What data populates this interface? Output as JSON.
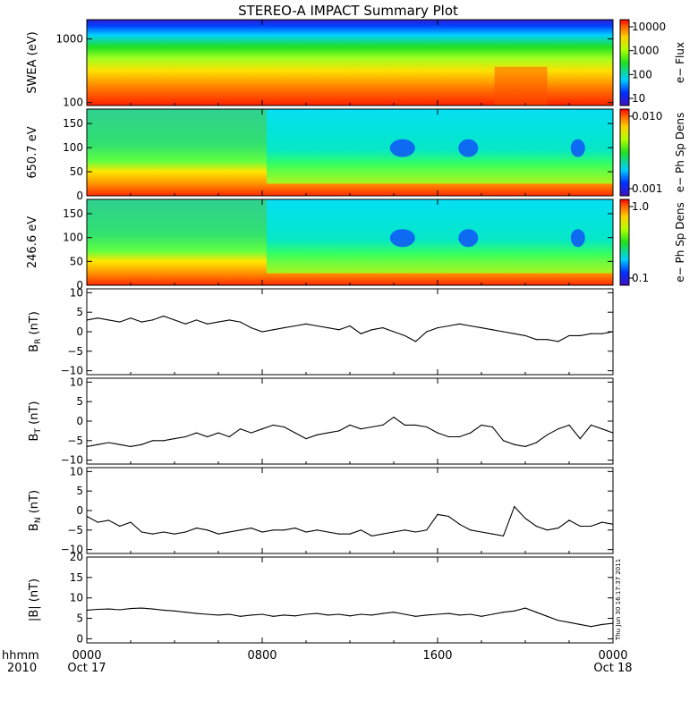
{
  "title": "STEREO-A IMPACT Summary Plot",
  "timestamp": "Thu Jun 30 16:17:37 2011",
  "x_axis": {
    "row1_label": "hhmm",
    "row2_label": "2010",
    "ticks": [
      "0000",
      "0800",
      "1600",
      "0000"
    ],
    "dates": [
      "Oct 17",
      "",
      "",
      "Oct 18"
    ],
    "range_hours": [
      0,
      24
    ]
  },
  "colors": {
    "trace": "#000000",
    "frame": "#000000",
    "background": "#ffffff"
  },
  "chart_data": [
    {
      "type": "heatmap",
      "id": "swea",
      "ylabel": "SWEA (eV)",
      "y_scale": "log",
      "ylim": [
        90,
        2000
      ],
      "yticks": [
        "1000",
        "100"
      ],
      "colorbar": {
        "label": "e− Flux",
        "scale": "log",
        "ticks": [
          "10000",
          "1000",
          "100",
          "10"
        ]
      },
      "description": "Electron flux: high (red) below ~150 eV across the day, decreasing to blue above ~1500 eV"
    },
    {
      "type": "heatmap",
      "id": "pad650",
      "ylabel": "650.7 eV",
      "ylim": [
        0,
        180
      ],
      "yticks": [
        "150",
        "100",
        "50",
        "0"
      ],
      "colorbar": {
        "label": "e− Ph Sp Dens",
        "scale": "log",
        "ticks": [
          "0.010",
          "0.001"
        ]
      },
      "blobs_hours": [
        14.4,
        17.4,
        22.4
      ]
    },
    {
      "type": "heatmap",
      "id": "pad246",
      "ylabel": "246.6 eV",
      "ylim": [
        0,
        180
      ],
      "yticks": [
        "150",
        "100",
        "50",
        "0"
      ],
      "colorbar": {
        "label": "e− Ph Sp Dens",
        "scale": "log",
        "ticks": [
          "1.0",
          "0.1"
        ]
      },
      "blobs_hours": [
        14.4,
        17.4,
        22.4
      ]
    },
    {
      "type": "line",
      "id": "br",
      "ylabel": "B",
      "ylabel_sub": "R",
      "ylabel_unit": " (nT)",
      "ylim": [
        -11,
        11
      ],
      "yticks": [
        "10",
        "5",
        "0",
        "−5",
        "−10"
      ],
      "x": [
        0,
        0.5,
        1,
        1.5,
        2,
        2.5,
        3,
        3.5,
        4,
        4.5,
        5,
        5.5,
        6,
        6.5,
        7,
        7.5,
        8,
        8.5,
        9,
        9.5,
        10,
        10.5,
        11,
        11.5,
        12,
        12.5,
        13,
        13.5,
        14,
        14.5,
        15,
        15.5,
        16,
        16.5,
        17,
        17.5,
        18,
        18.5,
        19,
        19.5,
        20,
        20.5,
        21,
        21.5,
        22,
        22.5,
        23,
        23.5,
        24
      ],
      "y": [
        3,
        3.5,
        3,
        2.5,
        3.5,
        2.5,
        3,
        4,
        3,
        2,
        3,
        2,
        2.5,
        3,
        2.5,
        1,
        0,
        0.5,
        1,
        1.5,
        2,
        1.5,
        1,
        0.5,
        1.5,
        -0.5,
        0.5,
        1,
        0,
        -1,
        -2.5,
        0,
        1,
        1.5,
        2,
        1.5,
        1,
        0.5,
        0,
        -0.5,
        -1,
        -2,
        -2,
        -2.5,
        -1,
        -1,
        -0.5,
        -0.5,
        0
      ]
    },
    {
      "type": "line",
      "id": "bt",
      "ylabel": "B",
      "ylabel_sub": "T",
      "ylabel_unit": " (nT)",
      "ylim": [
        -11,
        11
      ],
      "yticks": [
        "10",
        "5",
        "0",
        "−5",
        "−10"
      ],
      "x": [
        0,
        0.5,
        1,
        1.5,
        2,
        2.5,
        3,
        3.5,
        4,
        4.5,
        5,
        5.5,
        6,
        6.5,
        7,
        7.5,
        8,
        8.5,
        9,
        9.5,
        10,
        10.5,
        11,
        11.5,
        12,
        12.5,
        13,
        13.5,
        14,
        14.5,
        15,
        15.5,
        16,
        16.5,
        17,
        17.5,
        18,
        18.5,
        19,
        19.5,
        20,
        20.5,
        21,
        21.5,
        22,
        22.5,
        23,
        23.5,
        24
      ],
      "y": [
        -6.5,
        -6,
        -5.5,
        -6,
        -6.5,
        -6,
        -5,
        -5,
        -4.5,
        -4,
        -3,
        -4,
        -3,
        -4,
        -2,
        -3,
        -2,
        -1,
        -1.5,
        -3,
        -4.5,
        -3.5,
        -3,
        -2.5,
        -1,
        -2,
        -1.5,
        -1,
        1,
        -1,
        -1,
        -1.5,
        -3,
        -4,
        -4,
        -3,
        -1,
        -1.5,
        -5,
        -6,
        -6.5,
        -5.5,
        -3.5,
        -2,
        -1,
        -4.5,
        -1,
        -2,
        -3
      ]
    },
    {
      "type": "line",
      "id": "bn",
      "ylabel": "B",
      "ylabel_sub": "N",
      "ylabel_unit": " (nT)",
      "ylim": [
        -11,
        11
      ],
      "yticks": [
        "10",
        "5",
        "0",
        "−5",
        "−10"
      ],
      "x": [
        0,
        0.5,
        1,
        1.5,
        2,
        2.5,
        3,
        3.5,
        4,
        4.5,
        5,
        5.5,
        6,
        6.5,
        7,
        7.5,
        8,
        8.5,
        9,
        9.5,
        10,
        10.5,
        11,
        11.5,
        12,
        12.5,
        13,
        13.5,
        14,
        14.5,
        15,
        15.5,
        16,
        16.5,
        17,
        17.5,
        18,
        18.5,
        19,
        19.5,
        20,
        20.5,
        21,
        21.5,
        22,
        22.5,
        23,
        23.5,
        24
      ],
      "y": [
        -1.5,
        -3,
        -2.5,
        -4,
        -3,
        -5.5,
        -6,
        -5.5,
        -6,
        -5.5,
        -4.5,
        -5,
        -6,
        -5.5,
        -5,
        -4.5,
        -5.5,
        -5,
        -5,
        -4.5,
        -5.5,
        -5,
        -5.5,
        -6,
        -6,
        -5,
        -6.5,
        -6,
        -5.5,
        -5,
        -5.5,
        -5,
        -1,
        -1.5,
        -3.5,
        -5,
        -5.5,
        -6,
        -6.5,
        1,
        -2,
        -4,
        -5,
        -4.5,
        -2.5,
        -4,
        -4,
        -3,
        -3.5
      ]
    },
    {
      "type": "line",
      "id": "bmag",
      "ylabel": "|B| (nT)",
      "ylim": [
        -1,
        20
      ],
      "yticks": [
        "20",
        "15",
        "10",
        "5",
        "0"
      ],
      "x": [
        0,
        0.5,
        1,
        1.5,
        2,
        2.5,
        3,
        3.5,
        4,
        4.5,
        5,
        5.5,
        6,
        6.5,
        7,
        7.5,
        8,
        8.5,
        9,
        9.5,
        10,
        10.5,
        11,
        11.5,
        12,
        12.5,
        13,
        13.5,
        14,
        14.5,
        15,
        15.5,
        16,
        16.5,
        17,
        17.5,
        18,
        18.5,
        19,
        19.5,
        20,
        20.5,
        21,
        21.5,
        22,
        22.5,
        23,
        23.5,
        24
      ],
      "y": [
        7,
        7.2,
        7.3,
        7.1,
        7.4,
        7.5,
        7.3,
        7.0,
        6.8,
        6.5,
        6.2,
        6.0,
        5.8,
        6.0,
        5.5,
        5.8,
        6.0,
        5.5,
        5.8,
        5.6,
        6.0,
        6.2,
        5.8,
        6.0,
        5.6,
        6.0,
        5.8,
        6.2,
        6.5,
        6.0,
        5.5,
        5.8,
        6.0,
        6.2,
        5.8,
        6.0,
        5.5,
        6.0,
        6.5,
        6.8,
        7.5,
        6.5,
        5.5,
        4.5,
        4.0,
        3.5,
        3.0,
        3.5,
        3.8
      ]
    }
  ]
}
